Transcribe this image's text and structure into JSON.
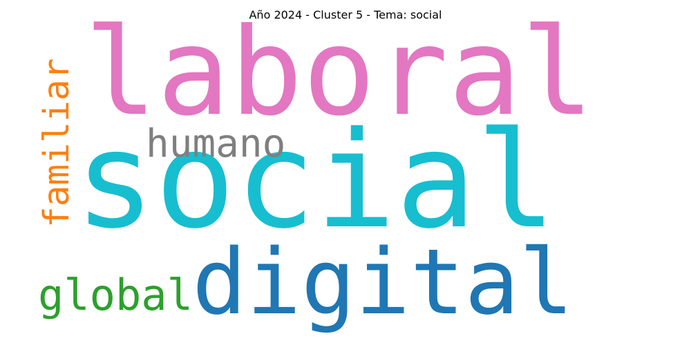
{
  "title": "Año 2024 - Cluster 5 - Tema: social",
  "words": {
    "laboral": {
      "text": "laboral",
      "color": "#e377c2"
    },
    "social": {
      "text": "social",
      "color": "#17becf"
    },
    "humano": {
      "text": "humano",
      "color": "#7f7f7f"
    },
    "familiar": {
      "text": "familiar",
      "color": "#ff7f0e",
      "orientation": "vertical"
    },
    "global": {
      "text": "global",
      "color": "#2ca02c"
    },
    "digital": {
      "text": "digital",
      "color": "#1f77b4"
    }
  }
}
